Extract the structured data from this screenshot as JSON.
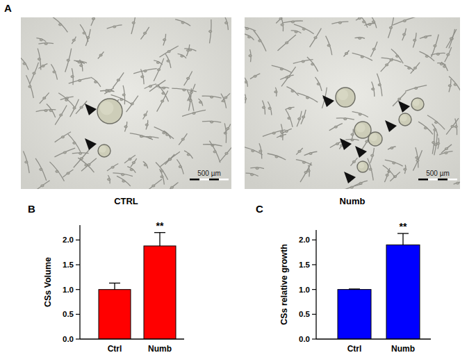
{
  "figure": {
    "panel_labels": [
      "A",
      "B",
      "C"
    ],
    "images": [
      {
        "caption": "CTRL",
        "scale_bar": "500 µm"
      },
      {
        "caption": "Numb",
        "scale_bar": "500 µm"
      }
    ]
  },
  "chart_data": [
    {
      "type": "bar",
      "y_label": "CSs Volume",
      "categories": [
        "Ctrl",
        "Numb"
      ],
      "values": [
        1.0,
        1.88
      ],
      "errors": [
        0.13,
        0.27
      ],
      "color": "#ff0000",
      "ylim": [
        0,
        2.3
      ],
      "yticks": [
        {
          "value": 0,
          "label": "0.0"
        },
        0.5,
        {
          "value": 1,
          "label": "1.0"
        },
        1.5,
        {
          "value": 2,
          "label": "2.0"
        }
      ],
      "annotations": [
        {
          "category": "Numb",
          "text": "**"
        }
      ]
    },
    {
      "type": "bar",
      "y_label": "CSs relative growth",
      "categories": [
        "Ctrl",
        "Numb"
      ],
      "values": [
        1.0,
        1.9
      ],
      "errors": [
        0.01,
        0.23
      ],
      "color": "#0000ff",
      "ylim": [
        0,
        2.2
      ],
      "yticks": [
        {
          "value": 0,
          "label": "0.0"
        },
        0.5,
        {
          "value": 1,
          "label": "1.0"
        },
        1.5,
        {
          "value": 2,
          "label": "2.0"
        }
      ],
      "annotations": [
        {
          "category": "Numb",
          "text": "**"
        }
      ]
    }
  ]
}
